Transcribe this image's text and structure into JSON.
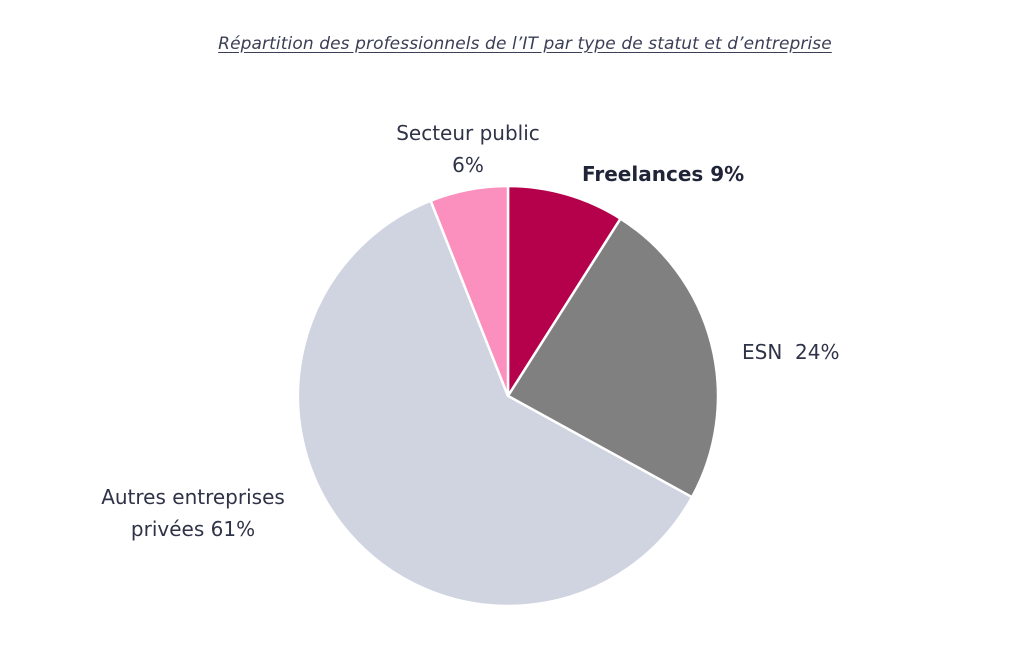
{
  "title": "Répartition des professionnels de l’IT par type de statut et d’entreprise",
  "chart_data": {
    "type": "pie",
    "title": "Répartition des professionnels de l’IT par type de statut et d’entreprise",
    "start": "12 o'clock",
    "direction": "clockwise",
    "slices": [
      {
        "name": "Freelances",
        "value": 9,
        "label": "Freelances 9%",
        "color": "#b5004b",
        "bold": true
      },
      {
        "name": "ESN",
        "value": 24,
        "label": "ESN  24%",
        "color": "#808080",
        "bold": false
      },
      {
        "name": "Autres entreprises privées",
        "value": 61,
        "label_line1": "Autres entreprises",
        "label_line2": "privées 61%",
        "color": "#cfd4e0",
        "bold": false
      },
      {
        "name": "Secteur public",
        "value": 6,
        "label_line1": "Secteur public",
        "label_line2": "6%",
        "color": "#fb8fbe",
        "bold": false
      }
    ],
    "legend": "none",
    "labels_outside": true
  }
}
